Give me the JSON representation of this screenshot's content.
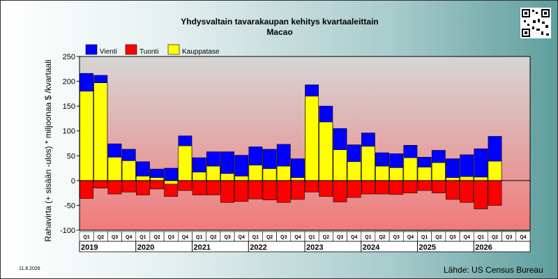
{
  "footer": {
    "date": "11.8.2026",
    "source": "Lähde: US Census Bureau"
  },
  "chart_data": {
    "type": "bar",
    "title": "Yhdysvaltain tavarakaupan kehitys kvartaaleittain",
    "subtitle": "Macao",
    "ylabel": "Rahavirta (+ sisään -ulos)  * miljoonaa $ /kvartaali",
    "ylim": [
      -100,
      250
    ],
    "yticks": [
      250,
      200,
      150,
      100,
      50,
      0,
      -50,
      -100
    ],
    "grid": false,
    "legend_position": "top-left",
    "colors": {
      "Vienti": "#0000ff",
      "Tuonti": "#ff0000",
      "Kauppatase": "#ffff00"
    },
    "quarter_labels": [
      "Q1",
      "Q2",
      "Q3",
      "Q4",
      "Q1",
      "Q2",
      "Q3",
      "Q4",
      "Q1",
      "Q2",
      "Q3",
      "Q4",
      "Q1",
      "Q2",
      "Q3",
      "Q4",
      "Q1",
      "Q2",
      "Q3",
      "Q4",
      "Q1",
      "Q2",
      "Q3",
      "Q4",
      "Q1",
      "Q2",
      "Q3",
      "Q4",
      "Q1",
      "Q2",
      "Q3",
      "Q4"
    ],
    "years": [
      "2019",
      "2020",
      "2021",
      "2022",
      "2023",
      "2024",
      "2025",
      "2026"
    ],
    "series": [
      {
        "name": "Vienti",
        "values": [
          216,
          212,
          74,
          63,
          38,
          23,
          25,
          90,
          46,
          58,
          58,
          51,
          68,
          63,
          73,
          44,
          193,
          150,
          105,
          72,
          96,
          56,
          54,
          71,
          47,
          61,
          44,
          52,
          64,
          89,
          null,
          null
        ]
      },
      {
        "name": "Tuonti",
        "values": [
          -36,
          -15,
          -27,
          -23,
          -29,
          -17,
          -32,
          -20,
          -29,
          -29,
          -44,
          -42,
          -37,
          -39,
          -44,
          -38,
          -23,
          -32,
          -43,
          -34,
          -27,
          -27,
          -28,
          -25,
          -20,
          -25,
          -38,
          -44,
          -57,
          -50,
          null,
          null
        ]
      },
      {
        "name": "Kauppatase",
        "values": [
          180,
          197,
          47,
          40,
          9,
          6,
          -7,
          70,
          17,
          29,
          14,
          9,
          31,
          24,
          29,
          6,
          170,
          118,
          62,
          38,
          69,
          29,
          26,
          46,
          27,
          36,
          6,
          8,
          7,
          39,
          null,
          null
        ]
      }
    ]
  }
}
